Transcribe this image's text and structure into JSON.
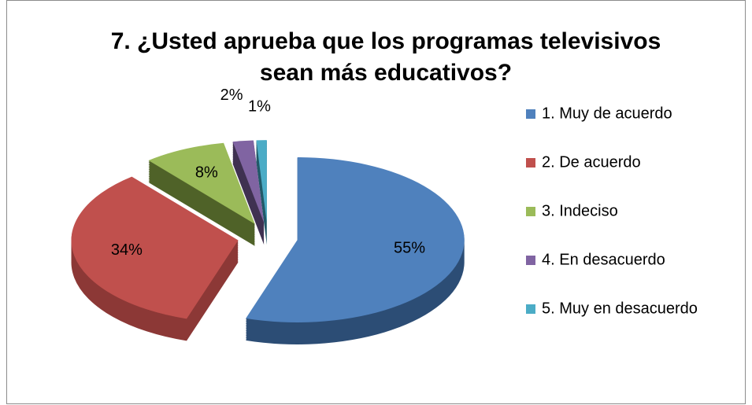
{
  "chart_data": {
    "type": "pie3d",
    "title": [
      "7. ¿Usted aprueba que los programas televisivos",
      "sean más educativos?"
    ],
    "categories": [
      "1. Muy de acuerdo",
      "2. De acuerdo",
      "3. Indeciso",
      "4. En desacuerdo",
      "5. Muy en desacuerdo"
    ],
    "values": [
      55,
      34,
      8,
      2,
      1
    ],
    "value_labels": [
      "55%",
      "34%",
      "8%",
      "2%",
      "1%"
    ],
    "colors": [
      "#4f81bd",
      "#c0504d",
      "#9bbb59",
      "#8064a2",
      "#4bacc6"
    ],
    "side_colors": [
      "#2c4d75",
      "#8c3836",
      "#4f6228",
      "#3f3151",
      "#215968"
    ],
    "legend": "right"
  }
}
